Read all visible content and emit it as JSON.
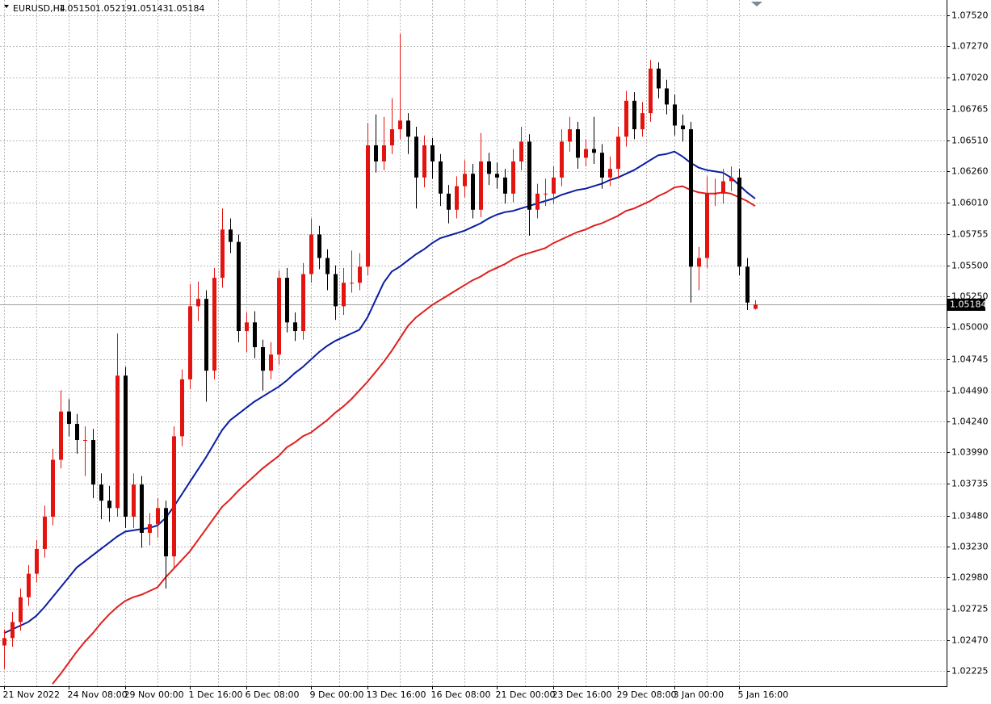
{
  "chart_data": {
    "type": "candlestick",
    "title": "EURUSD,H4",
    "ohlc_labels": [
      "1.05150",
      "1.05219",
      "1.05143",
      "1.05184"
    ],
    "last_price": {
      "value": 1.05184,
      "label": "1.05184"
    },
    "up_color": "#e3140f",
    "down_color": "#000000",
    "grid": true,
    "ylim": [
      1.02101,
      1.07644
    ],
    "yticks": [
      {
        "value": 1.0752,
        "label": "1.07520"
      },
      {
        "value": 1.0727,
        "label": "1.07270"
      },
      {
        "value": 1.0702,
        "label": "1.07020"
      },
      {
        "value": 1.06765,
        "label": "1.06765"
      },
      {
        "value": 1.0651,
        "label": "1.06510"
      },
      {
        "value": 1.0626,
        "label": "1.06260"
      },
      {
        "value": 1.0601,
        "label": "1.06010"
      },
      {
        "value": 1.05755,
        "label": "1.05755"
      },
      {
        "value": 1.055,
        "label": "1.05500"
      },
      {
        "value": 1.0525,
        "label": "1.05250"
      },
      {
        "value": 1.05,
        "label": "1.05000"
      },
      {
        "value": 1.04745,
        "label": "1.04745"
      },
      {
        "value": 1.0449,
        "label": "1.04490"
      },
      {
        "value": 1.0424,
        "label": "1.04240"
      },
      {
        "value": 1.0399,
        "label": "1.03990"
      },
      {
        "value": 1.03735,
        "label": "1.03735"
      },
      {
        "value": 1.0348,
        "label": "1.03480"
      },
      {
        "value": 1.0323,
        "label": "1.03230"
      },
      {
        "value": 1.0298,
        "label": "1.02980"
      },
      {
        "value": 1.02725,
        "label": "1.02725"
      },
      {
        "value": 1.0247,
        "label": "1.02470"
      },
      {
        "value": 1.02225,
        "label": "1.02225"
      }
    ],
    "categories": [
      "21 Nov 2022",
      null,
      null,
      null,
      null,
      null,
      null,
      null,
      "24 Nov 08:00",
      null,
      null,
      null,
      null,
      null,
      null,
      "29 Nov 00:00",
      null,
      null,
      null,
      null,
      null,
      null,
      null,
      "1 Dec 16:00",
      null,
      null,
      null,
      null,
      null,
      null,
      "6 Dec 08:00",
      null,
      null,
      null,
      null,
      null,
      null,
      null,
      "9 Dec 00:00",
      null,
      null,
      null,
      null,
      null,
      null,
      "13 Dec 16:00",
      null,
      null,
      null,
      null,
      null,
      null,
      null,
      "16 Dec 08:00",
      null,
      null,
      null,
      null,
      null,
      null,
      null,
      "21 Dec 00:00",
      null,
      null,
      null,
      null,
      null,
      null,
      "23 Dec 16:00",
      null,
      null,
      null,
      null,
      null,
      null,
      null,
      "29 Dec 08:00",
      null,
      null,
      null,
      null,
      null,
      null,
      "3 Jan 00:00",
      null,
      null,
      null,
      null,
      null,
      null,
      null,
      "5 Jan 16:00",
      null,
      null
    ],
    "open": [
      1.0243,
      1.0249,
      1.0262,
      1.0282,
      1.0301,
      1.0321,
      1.0347,
      1.0393,
      1.0432,
      1.0422,
      1.0409,
      1.0409,
      1.0373,
      1.036,
      1.0354,
      1.0461,
      1.0347,
      1.0373,
      1.0334,
      1.0341,
      1.0354,
      1.0315,
      1.0412,
      1.0458,
      1.0517,
      1.0523,
      1.0465,
      1.054,
      1.0579,
      1.0569,
      1.0497,
      1.0504,
      1.0484,
      1.0465,
      1.0478,
      1.054,
      1.0504,
      1.0497,
      1.0543,
      1.0575,
      1.0556,
      1.0543,
      1.0517,
      1.0536,
      1.0536,
      1.0549,
      1.0647,
      1.0634,
      1.0647,
      1.066,
      1.0667,
      1.0654,
      1.0621,
      1.0647,
      1.0634,
      1.0608,
      1.0595,
      1.0614,
      1.0624,
      1.0595,
      1.0634,
      1.0624,
      1.0621,
      1.0608,
      1.0634,
      1.065,
      1.0595,
      1.0608,
      1.0608,
      1.0621,
      1.065,
      1.066,
      1.0637,
      1.0644,
      1.0641,
      1.0621,
      1.0628,
      1.0654,
      1.0683,
      1.066,
      1.0673,
      1.0709,
      1.0693,
      1.068,
      1.0663,
      1.066,
      1.0549,
      1.0556,
      1.0608,
      1.0608,
      1.0618,
      1.0621,
      1.0549,
      1.0515
    ],
    "high": [
      1.0256,
      1.027,
      1.0289,
      1.0308,
      1.0328,
      1.0356,
      1.0402,
      1.0449,
      1.0442,
      1.043,
      1.042,
      1.0418,
      1.0382,
      1.0372,
      1.0495,
      1.0468,
      1.0382,
      1.038,
      1.035,
      1.0362,
      1.036,
      1.042,
      1.0466,
      1.0535,
      1.0537,
      1.053,
      1.0548,
      1.0596,
      1.0588,
      1.0575,
      1.0512,
      1.0513,
      1.049,
      1.0488,
      1.0546,
      1.0548,
      1.0512,
      1.0552,
      1.0588,
      1.0582,
      1.0563,
      1.055,
      1.0548,
      1.0562,
      1.056,
      1.0665,
      1.0672,
      1.067,
      1.0685,
      1.0737,
      1.0673,
      1.0662,
      1.0655,
      1.0653,
      1.064,
      1.0615,
      1.0622,
      1.0635,
      1.0632,
      1.0657,
      1.0641,
      1.0633,
      1.0628,
      1.0644,
      1.0662,
      1.0656,
      1.0616,
      1.062,
      1.063,
      1.066,
      1.067,
      1.0666,
      1.0652,
      1.067,
      1.0648,
      1.0638,
      1.0662,
      1.0691,
      1.069,
      1.0682,
      1.0716,
      1.0714,
      1.07,
      1.0688,
      1.0672,
      1.0666,
      1.0565,
      1.0622,
      1.062,
      1.0628,
      1.063,
      1.0628,
      1.0556,
      1.05219
    ],
    "low": [
      1.0224,
      1.0242,
      1.0255,
      1.0275,
      1.0294,
      1.0314,
      1.034,
      1.0386,
      1.0412,
      1.0398,
      1.038,
      1.0362,
      1.0345,
      1.0343,
      1.0347,
      1.0338,
      1.0338,
      1.0322,
      1.0324,
      1.033,
      1.0289,
      1.0306,
      1.0404,
      1.045,
      1.0505,
      1.044,
      1.0458,
      1.0532,
      1.056,
      1.0488,
      1.048,
      1.0475,
      1.0449,
      1.0458,
      1.047,
      1.0496,
      1.0489,
      1.049,
      1.0536,
      1.0547,
      1.053,
      1.0506,
      1.051,
      1.0528,
      1.053,
      1.0542,
      1.0625,
      1.0627,
      1.064,
      1.0652,
      1.064,
      1.0596,
      1.0613,
      1.062,
      1.0598,
      1.0584,
      1.0588,
      1.0605,
      1.0588,
      1.0589,
      1.0615,
      1.0612,
      1.06,
      1.0601,
      1.0627,
      1.0574,
      1.0588,
      1.0598,
      1.06,
      1.0614,
      1.0642,
      1.0628,
      1.063,
      1.0632,
      1.0612,
      1.0614,
      1.062,
      1.0646,
      1.0652,
      1.0654,
      1.0666,
      1.0685,
      1.0672,
      1.0655,
      1.065,
      1.052,
      1.053,
      1.0548,
      1.0598,
      1.06,
      1.061,
      1.0542,
      1.0514,
      1.05143
    ],
    "close": [
      1.0249,
      1.0262,
      1.0282,
      1.0301,
      1.0321,
      1.0347,
      1.0393,
      1.0432,
      1.0422,
      1.0409,
      1.0409,
      1.0373,
      1.036,
      1.0354,
      1.0461,
      1.0347,
      1.0373,
      1.0334,
      1.0341,
      1.0354,
      1.0315,
      1.0412,
      1.0458,
      1.0517,
      1.0523,
      1.0465,
      1.054,
      1.0579,
      1.0569,
      1.0497,
      1.0504,
      1.0484,
      1.0465,
      1.0478,
      1.054,
      1.0504,
      1.0497,
      1.0543,
      1.0575,
      1.0556,
      1.0543,
      1.0517,
      1.0536,
      1.0536,
      1.0549,
      1.0647,
      1.0634,
      1.0647,
      1.066,
      1.0667,
      1.0654,
      1.0621,
      1.0647,
      1.0634,
      1.0608,
      1.0595,
      1.0614,
      1.0624,
      1.0595,
      1.0634,
      1.0624,
      1.0621,
      1.0608,
      1.0634,
      1.065,
      1.0595,
      1.0608,
      1.0608,
      1.0621,
      1.065,
      1.066,
      1.0637,
      1.0644,
      1.0641,
      1.0621,
      1.0628,
      1.0654,
      1.0683,
      1.066,
      1.0673,
      1.0709,
      1.0693,
      1.068,
      1.0663,
      1.066,
      1.0549,
      1.0556,
      1.0608,
      1.0608,
      1.0618,
      1.0621,
      1.0549,
      1.052,
      1.05184
    ],
    "lines": [
      {
        "color": "#0a1ea0",
        "values": [
          1.0253,
          1.0256,
          1.0259,
          1.0262,
          1.0267,
          1.0274,
          1.0282,
          1.029,
          1.0298,
          1.0306,
          1.0311,
          1.0316,
          1.0321,
          1.0326,
          1.0331,
          1.0335,
          1.0336,
          1.0337,
          1.0338,
          1.034,
          1.0346,
          1.0355,
          1.0365,
          1.0375,
          1.0385,
          1.0395,
          1.0406,
          1.0417,
          1.0425,
          1.043,
          1.0435,
          1.044,
          1.0444,
          1.0448,
          1.0452,
          1.0457,
          1.0463,
          1.0468,
          1.0474,
          1.048,
          1.0485,
          1.0489,
          1.0492,
          1.0495,
          1.0498,
          1.0508,
          1.0522,
          1.0536,
          1.0545,
          1.0549,
          1.0554,
          1.0559,
          1.0563,
          1.0568,
          1.0572,
          1.0574,
          1.0576,
          1.0578,
          1.0581,
          1.0584,
          1.0588,
          1.0591,
          1.0593,
          1.0594,
          1.0596,
          1.0598,
          1.06,
          1.0602,
          1.0604,
          1.0607,
          1.0609,
          1.0611,
          1.0612,
          1.0614,
          1.0616,
          1.0619,
          1.0621,
          1.0624,
          1.0627,
          1.0631,
          1.0635,
          1.0639,
          1.064,
          1.0642,
          1.0638,
          1.0633,
          1.0629,
          1.0627,
          1.0626,
          1.0625,
          1.0621,
          1.0615,
          1.0609,
          1.0604
        ]
      },
      {
        "color": "#e01e1e",
        "values": [
          null,
          null,
          null,
          null,
          null,
          null,
          1.0212,
          1.022,
          1.0229,
          1.0238,
          1.0246,
          1.0253,
          1.0261,
          1.0268,
          1.0274,
          1.0279,
          1.0282,
          1.0284,
          1.0287,
          1.029,
          1.0298,
          1.0305,
          1.0312,
          1.0319,
          1.0328,
          1.0337,
          1.0346,
          1.0355,
          1.0361,
          1.0368,
          1.0374,
          1.038,
          1.0386,
          1.0391,
          1.0396,
          1.0403,
          1.0407,
          1.0412,
          1.0415,
          1.042,
          1.0425,
          1.0431,
          1.0436,
          1.0442,
          1.0449,
          1.0456,
          1.0464,
          1.0472,
          1.0481,
          1.0491,
          1.0501,
          1.0508,
          1.0513,
          1.0518,
          1.0522,
          1.0526,
          1.053,
          1.0534,
          1.0538,
          1.0541,
          1.0545,
          1.0548,
          1.0551,
          1.0555,
          1.0558,
          1.056,
          1.0562,
          1.0564,
          1.0568,
          1.0571,
          1.0574,
          1.0577,
          1.0579,
          1.0582,
          1.0584,
          1.0587,
          1.059,
          1.0594,
          1.0596,
          1.0599,
          1.0602,
          1.0606,
          1.0609,
          1.0613,
          1.0614,
          1.0611,
          1.0609,
          1.0608,
          1.0608,
          1.0609,
          1.0608,
          1.0605,
          1.0602,
          1.0598
        ]
      }
    ]
  }
}
